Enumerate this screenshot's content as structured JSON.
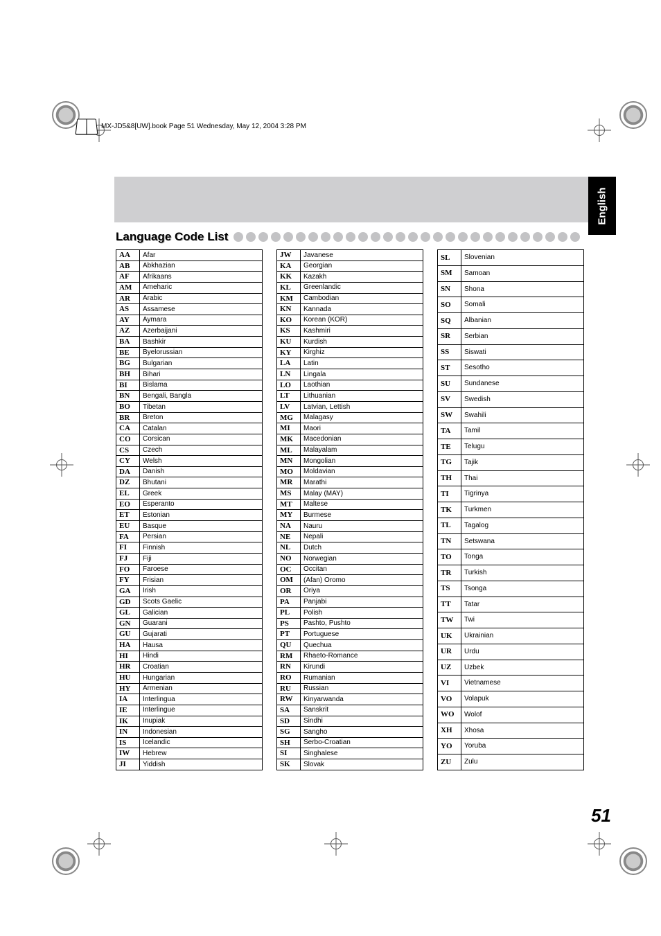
{
  "header_text": "MX-JD5&8[UW].book  Page 51  Wednesday, May 12, 2004  3:28 PM",
  "side_tab": "English",
  "title": "Language Code List",
  "page_number": "51",
  "columns": [
    [
      [
        "AA",
        "Afar"
      ],
      [
        "AB",
        "Abkhazian"
      ],
      [
        "AF",
        "Afrikaans"
      ],
      [
        "AM",
        "Ameharic"
      ],
      [
        "AR",
        "Arabic"
      ],
      [
        "AS",
        "Assamese"
      ],
      [
        "AY",
        "Aymara"
      ],
      [
        "AZ",
        "Azerbaijani"
      ],
      [
        "BA",
        "Bashkir"
      ],
      [
        "BE",
        "Byelorussian"
      ],
      [
        "BG",
        "Bulgarian"
      ],
      [
        "BH",
        "Bihari"
      ],
      [
        "BI",
        "Bislama"
      ],
      [
        "BN",
        "Bengali, Bangla"
      ],
      [
        "BO",
        "Tibetan"
      ],
      [
        "BR",
        "Breton"
      ],
      [
        "CA",
        "Catalan"
      ],
      [
        "CO",
        "Corsican"
      ],
      [
        "CS",
        "Czech"
      ],
      [
        "CY",
        "Welsh"
      ],
      [
        "DA",
        "Danish"
      ],
      [
        "DZ",
        "Bhutani"
      ],
      [
        "EL",
        "Greek"
      ],
      [
        "EO",
        "Esperanto"
      ],
      [
        "ET",
        "Estonian"
      ],
      [
        "EU",
        "Basque"
      ],
      [
        "FA",
        "Persian"
      ],
      [
        "FI",
        "Finnish"
      ],
      [
        "FJ",
        "Fiji"
      ],
      [
        "FO",
        "Faroese"
      ],
      [
        "FY",
        "Frisian"
      ],
      [
        "GA",
        "Irish"
      ],
      [
        "GD",
        "Scots Gaelic"
      ],
      [
        "GL",
        "Galician"
      ],
      [
        "GN",
        "Guarani"
      ],
      [
        "GU",
        "Gujarati"
      ],
      [
        "HA",
        "Hausa"
      ],
      [
        "HI",
        "Hindi"
      ],
      [
        "HR",
        "Croatian"
      ],
      [
        "HU",
        "Hungarian"
      ],
      [
        "HY",
        "Armenian"
      ],
      [
        "IA",
        "Interlingua"
      ],
      [
        "IE",
        "Interlingue"
      ],
      [
        "IK",
        "Inupiak"
      ],
      [
        "IN",
        "Indonesian"
      ],
      [
        "IS",
        "Icelandic"
      ],
      [
        "IW",
        "Hebrew"
      ],
      [
        "JI",
        "Yiddish"
      ]
    ],
    [
      [
        "JW",
        "Javanese"
      ],
      [
        "KA",
        "Georgian"
      ],
      [
        "KK",
        "Kazakh"
      ],
      [
        "KL",
        "Greenlandic"
      ],
      [
        "KM",
        "Cambodian"
      ],
      [
        "KN",
        "Kannada"
      ],
      [
        "KO",
        "Korean (KOR)"
      ],
      [
        "KS",
        "Kashmiri"
      ],
      [
        "KU",
        "Kurdish"
      ],
      [
        "KY",
        "Kirghiz"
      ],
      [
        "LA",
        "Latin"
      ],
      [
        "LN",
        "Lingala"
      ],
      [
        "LO",
        "Laothian"
      ],
      [
        "LT",
        "Lithuanian"
      ],
      [
        "LV",
        "Latvian, Lettish"
      ],
      [
        "MG",
        "Malagasy"
      ],
      [
        "MI",
        "Maori"
      ],
      [
        "MK",
        "Macedonian"
      ],
      [
        "ML",
        "Malayalam"
      ],
      [
        "MN",
        "Mongolian"
      ],
      [
        "MO",
        "Moldavian"
      ],
      [
        "MR",
        "Marathi"
      ],
      [
        "MS",
        "Malay (MAY)"
      ],
      [
        "MT",
        "Maltese"
      ],
      [
        "MY",
        "Burmese"
      ],
      [
        "NA",
        "Nauru"
      ],
      [
        "NE",
        "Nepali"
      ],
      [
        "NL",
        "Dutch"
      ],
      [
        "NO",
        "Norwegian"
      ],
      [
        "OC",
        "Occitan"
      ],
      [
        "OM",
        "(Afan) Oromo"
      ],
      [
        "OR",
        "Oriya"
      ],
      [
        "PA",
        "Panjabi"
      ],
      [
        "PL",
        "Polish"
      ],
      [
        "PS",
        "Pashto, Pushto"
      ],
      [
        "PT",
        "Portuguese"
      ],
      [
        "QU",
        "Quechua"
      ],
      [
        "RM",
        "Rhaeto-Romance"
      ],
      [
        "RN",
        "Kirundi"
      ],
      [
        "RO",
        "Rumanian"
      ],
      [
        "RU",
        "Russian"
      ],
      [
        "RW",
        "Kinyarwanda"
      ],
      [
        "SA",
        "Sanskrit"
      ],
      [
        "SD",
        "Sindhi"
      ],
      [
        "SG",
        "Sangho"
      ],
      [
        "SH",
        "Serbo-Croatian"
      ],
      [
        "SI",
        "Singhalese"
      ],
      [
        "SK",
        "Slovak"
      ]
    ],
    [
      [
        "SL",
        "Slovenian"
      ],
      [
        "SM",
        "Samoan"
      ],
      [
        "SN",
        "Shona"
      ],
      [
        "SO",
        "Somali"
      ],
      [
        "SQ",
        "Albanian"
      ],
      [
        "SR",
        "Serbian"
      ],
      [
        "SS",
        "Siswati"
      ],
      [
        "ST",
        "Sesotho"
      ],
      [
        "SU",
        "Sundanese"
      ],
      [
        "SV",
        "Swedish"
      ],
      [
        "SW",
        "Swahili"
      ],
      [
        "TA",
        "Tamil"
      ],
      [
        "TE",
        "Telugu"
      ],
      [
        "TG",
        "Tajik"
      ],
      [
        "TH",
        "Thai"
      ],
      [
        "TI",
        "Tigrinya"
      ],
      [
        "TK",
        "Turkmen"
      ],
      [
        "TL",
        "Tagalog"
      ],
      [
        "TN",
        "Setswana"
      ],
      [
        "TO",
        "Tonga"
      ],
      [
        "TR",
        "Turkish"
      ],
      [
        "TS",
        "Tsonga"
      ],
      [
        "TT",
        "Tatar"
      ],
      [
        "TW",
        "Twi"
      ],
      [
        "UK",
        "Ukrainian"
      ],
      [
        "UR",
        "Urdu"
      ],
      [
        "UZ",
        "Uzbek"
      ],
      [
        "VI",
        "Vietnamese"
      ],
      [
        "VO",
        "Volapuk"
      ],
      [
        "WO",
        "Wolof"
      ],
      [
        "XH",
        "Xhosa"
      ],
      [
        "YO",
        "Yoruba"
      ],
      [
        "ZU",
        "Zulu"
      ]
    ]
  ],
  "dot_count": 28
}
